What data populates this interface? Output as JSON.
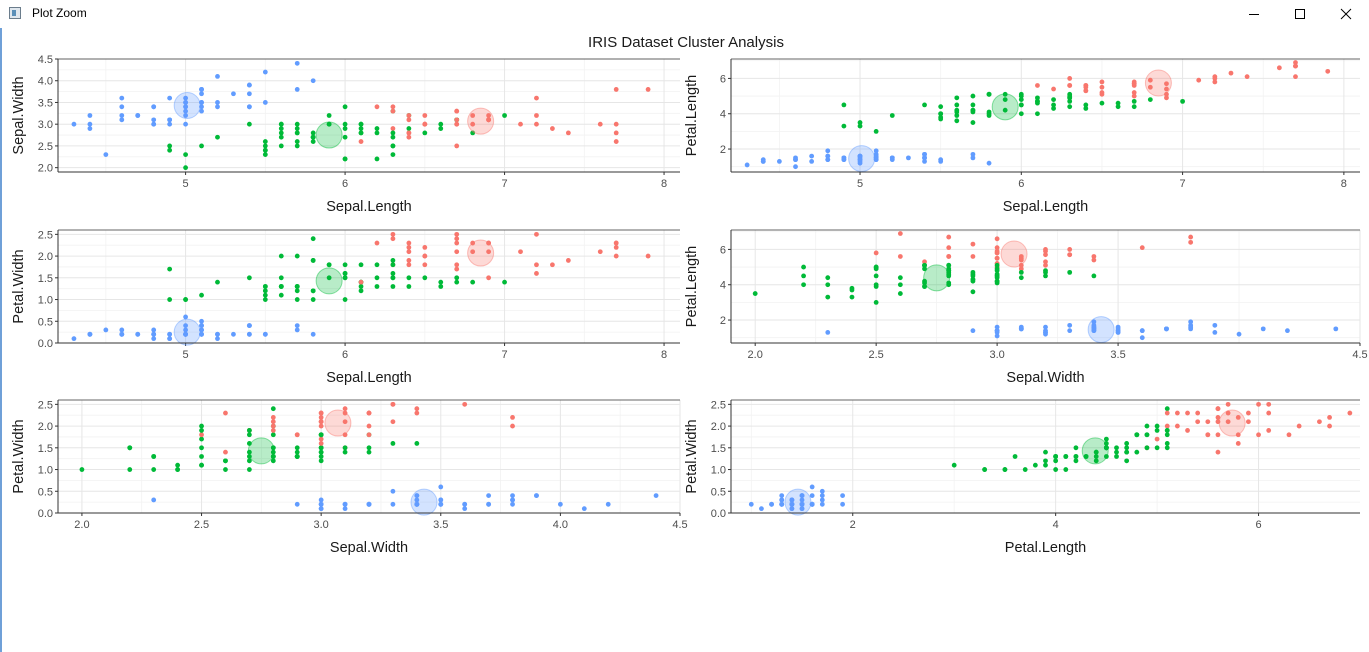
{
  "window": {
    "title": "Plot Zoom"
  },
  "chart_data": {
    "type": "scatter",
    "title": "IRIS Dataset Cluster Analysis",
    "colors": {
      "cluster1": "#f8766d",
      "cluster2": "#00ba38",
      "cluster3": "#619cff"
    },
    "centers": [
      {
        "cluster": 1,
        "Sepal.Length": 6.85,
        "Sepal.Width": 3.07,
        "Petal.Length": 5.74,
        "Petal.Width": 2.07
      },
      {
        "cluster": 2,
        "Sepal.Length": 5.9,
        "Sepal.Width": 2.75,
        "Petal.Length": 4.39,
        "Petal.Width": 1.43
      },
      {
        "cluster": 3,
        "Sepal.Length": 5.01,
        "Sepal.Width": 3.43,
        "Petal.Length": 1.46,
        "Petal.Width": 0.25
      }
    ],
    "panels": [
      {
        "x": "Sepal.Length",
        "y": "Sepal.Width",
        "xlabel": "Sepal.Length",
        "ylabel": "Sepal.Width",
        "xlim": [
          4.2,
          8.1
        ],
        "ylim": [
          1.9,
          4.5
        ],
        "xticks": [
          "5",
          "6",
          "7",
          "8"
        ],
        "yticks": [
          "2.0",
          "2.5",
          "3.0",
          "3.5",
          "4.0",
          "4.5"
        ]
      },
      {
        "x": "Sepal.Length",
        "y": "Petal.Length",
        "xlabel": "Sepal.Length",
        "ylabel": "Petal.Length",
        "xlim": [
          4.2,
          8.1
        ],
        "ylim": [
          0.7,
          7.1
        ],
        "xticks": [
          "5",
          "6",
          "7",
          "8"
        ],
        "yticks": [
          "2",
          "4",
          "6"
        ]
      },
      {
        "x": "Sepal.Length",
        "y": "Petal.Width",
        "xlabel": "Sepal.Length",
        "ylabel": "Petal.Width",
        "xlim": [
          4.2,
          8.1
        ],
        "ylim": [
          0.0,
          2.6
        ],
        "xticks": [
          "5",
          "6",
          "7",
          "8"
        ],
        "yticks": [
          "0.0",
          "0.5",
          "1.0",
          "1.5",
          "2.0",
          "2.5"
        ]
      },
      {
        "x": "Sepal.Width",
        "y": "Petal.Length",
        "xlabel": "Sepal.Width",
        "ylabel": "Petal.Length",
        "xlim": [
          1.9,
          4.5
        ],
        "ylim": [
          0.7,
          7.1
        ],
        "xticks": [
          "2.0",
          "2.5",
          "3.0",
          "3.5",
          "4.5"
        ],
        "yticks": [
          "2",
          "4",
          "6"
        ]
      },
      {
        "x": "Sepal.Width",
        "y": "Petal.Width",
        "xlabel": "Sepal.Width",
        "ylabel": "Petal.Width",
        "xlim": [
          1.9,
          4.5
        ],
        "ylim": [
          0.0,
          2.6
        ],
        "xticks": [
          "2.0",
          "2.5",
          "3.0",
          "3.5",
          "4.0",
          "4.5"
        ],
        "yticks": [
          "0.0",
          "0.5",
          "1.0",
          "1.5",
          "2.0",
          "2.5"
        ]
      },
      {
        "x": "Petal.Length",
        "y": "Petal.Width",
        "xlabel": "Petal.Length",
        "ylabel": "Petal.Width",
        "xlim": [
          0.8,
          7.0
        ],
        "ylim": [
          0.0,
          2.6
        ],
        "xticks": [
          "2",
          "4",
          "6"
        ],
        "yticks": [
          "0.0",
          "0.5",
          "1.0",
          "1.5",
          "2.0",
          "2.5"
        ]
      }
    ],
    "columns": [
      "Sepal.Length",
      "Sepal.Width",
      "Petal.Length",
      "Petal.Width",
      "cluster"
    ],
    "points": [
      [
        5.1,
        3.5,
        1.4,
        0.2,
        3
      ],
      [
        4.9,
        3.0,
        1.4,
        0.2,
        3
      ],
      [
        4.7,
        3.2,
        1.3,
        0.2,
        3
      ],
      [
        4.6,
        3.1,
        1.5,
        0.2,
        3
      ],
      [
        5.0,
        3.6,
        1.4,
        0.2,
        3
      ],
      [
        5.4,
        3.9,
        1.7,
        0.4,
        3
      ],
      [
        4.6,
        3.4,
        1.4,
        0.3,
        3
      ],
      [
        5.0,
        3.4,
        1.5,
        0.2,
        3
      ],
      [
        4.4,
        2.9,
        1.4,
        0.2,
        3
      ],
      [
        4.9,
        3.1,
        1.5,
        0.1,
        3
      ],
      [
        5.4,
        3.7,
        1.5,
        0.2,
        3
      ],
      [
        4.8,
        3.4,
        1.6,
        0.2,
        3
      ],
      [
        4.8,
        3.0,
        1.4,
        0.1,
        3
      ],
      [
        4.3,
        3.0,
        1.1,
        0.1,
        3
      ],
      [
        5.8,
        4.0,
        1.2,
        0.2,
        3
      ],
      [
        5.7,
        4.4,
        1.5,
        0.4,
        3
      ],
      [
        5.4,
        3.9,
        1.3,
        0.4,
        3
      ],
      [
        5.1,
        3.5,
        1.4,
        0.3,
        3
      ],
      [
        5.7,
        3.8,
        1.7,
        0.3,
        3
      ],
      [
        5.1,
        3.8,
        1.5,
        0.3,
        3
      ],
      [
        5.4,
        3.4,
        1.7,
        0.2,
        3
      ],
      [
        5.1,
        3.7,
        1.5,
        0.4,
        3
      ],
      [
        4.6,
        3.6,
        1.0,
        0.2,
        3
      ],
      [
        5.1,
        3.3,
        1.7,
        0.5,
        3
      ],
      [
        4.8,
        3.4,
        1.9,
        0.2,
        3
      ],
      [
        5.0,
        3.0,
        1.6,
        0.2,
        3
      ],
      [
        5.0,
        3.4,
        1.6,
        0.4,
        3
      ],
      [
        5.2,
        3.5,
        1.5,
        0.2,
        3
      ],
      [
        5.2,
        3.4,
        1.4,
        0.2,
        3
      ],
      [
        4.7,
        3.2,
        1.6,
        0.2,
        3
      ],
      [
        4.8,
        3.1,
        1.6,
        0.2,
        3
      ],
      [
        5.4,
        3.4,
        1.5,
        0.4,
        3
      ],
      [
        5.2,
        4.1,
        1.5,
        0.1,
        3
      ],
      [
        5.5,
        4.2,
        1.4,
        0.2,
        3
      ],
      [
        4.9,
        3.1,
        1.5,
        0.2,
        3
      ],
      [
        5.0,
        3.2,
        1.2,
        0.2,
        3
      ],
      [
        5.5,
        3.5,
        1.3,
        0.2,
        3
      ],
      [
        4.9,
        3.6,
        1.4,
        0.1,
        3
      ],
      [
        4.4,
        3.0,
        1.3,
        0.2,
        3
      ],
      [
        5.1,
        3.4,
        1.5,
        0.2,
        3
      ],
      [
        5.0,
        3.5,
        1.3,
        0.3,
        3
      ],
      [
        4.5,
        2.3,
        1.3,
        0.3,
        3
      ],
      [
        4.4,
        3.2,
        1.3,
        0.2,
        3
      ],
      [
        5.0,
        3.5,
        1.6,
        0.6,
        3
      ],
      [
        5.1,
        3.8,
        1.9,
        0.4,
        3
      ],
      [
        4.8,
        3.0,
        1.4,
        0.3,
        3
      ],
      [
        5.1,
        3.8,
        1.6,
        0.2,
        3
      ],
      [
        4.6,
        3.2,
        1.4,
        0.2,
        3
      ],
      [
        5.3,
        3.7,
        1.5,
        0.2,
        3
      ],
      [
        5.0,
        3.3,
        1.4,
        0.2,
        3
      ],
      [
        7.0,
        3.2,
        4.7,
        1.4,
        2
      ],
      [
        6.4,
        3.2,
        4.5,
        1.5,
        2
      ],
      [
        6.9,
        3.1,
        4.9,
        1.5,
        1
      ],
      [
        5.5,
        2.3,
        4.0,
        1.3,
        2
      ],
      [
        6.5,
        2.8,
        4.6,
        1.5,
        2
      ],
      [
        5.7,
        2.8,
        4.5,
        1.3,
        2
      ],
      [
        6.3,
        3.3,
        4.7,
        1.6,
        2
      ],
      [
        4.9,
        2.4,
        3.3,
        1.0,
        2
      ],
      [
        6.6,
        2.9,
        4.6,
        1.3,
        2
      ],
      [
        5.2,
        2.7,
        3.9,
        1.4,
        2
      ],
      [
        5.0,
        2.0,
        3.5,
        1.0,
        2
      ],
      [
        5.9,
        3.0,
        4.2,
        1.5,
        2
      ],
      [
        6.0,
        2.2,
        4.0,
        1.0,
        2
      ],
      [
        6.1,
        2.9,
        4.7,
        1.4,
        2
      ],
      [
        5.6,
        2.9,
        3.6,
        1.3,
        2
      ],
      [
        6.7,
        3.1,
        4.4,
        1.4,
        2
      ],
      [
        5.6,
        3.0,
        4.5,
        1.5,
        2
      ],
      [
        5.8,
        2.7,
        4.1,
        1.0,
        2
      ],
      [
        6.2,
        2.2,
        4.5,
        1.5,
        2
      ],
      [
        5.6,
        2.5,
        3.9,
        1.1,
        2
      ],
      [
        5.9,
        3.2,
        4.8,
        1.8,
        2
      ],
      [
        6.1,
        2.8,
        4.0,
        1.3,
        2
      ],
      [
        6.3,
        2.5,
        4.9,
        1.5,
        2
      ],
      [
        6.1,
        2.8,
        4.7,
        1.2,
        2
      ],
      [
        6.4,
        2.9,
        4.3,
        1.3,
        2
      ],
      [
        6.6,
        3.0,
        4.4,
        1.4,
        2
      ],
      [
        6.8,
        2.8,
        4.8,
        1.4,
        2
      ],
      [
        6.7,
        3.0,
        5.0,
        1.7,
        1
      ],
      [
        6.0,
        2.9,
        4.5,
        1.5,
        2
      ],
      [
        5.7,
        2.6,
        3.5,
        1.0,
        2
      ],
      [
        5.5,
        2.4,
        3.8,
        1.1,
        2
      ],
      [
        5.5,
        2.4,
        3.7,
        1.0,
        2
      ],
      [
        5.8,
        2.7,
        3.9,
        1.2,
        2
      ],
      [
        6.0,
        2.7,
        5.1,
        1.6,
        2
      ],
      [
        5.4,
        3.0,
        4.5,
        1.5,
        2
      ],
      [
        6.0,
        3.4,
        4.5,
        1.6,
        2
      ],
      [
        6.7,
        3.1,
        4.7,
        1.5,
        2
      ],
      [
        6.3,
        2.3,
        4.4,
        1.3,
        2
      ],
      [
        5.6,
        3.0,
        4.1,
        1.3,
        2
      ],
      [
        5.5,
        2.5,
        4.0,
        1.3,
        2
      ],
      [
        5.5,
        2.6,
        4.4,
        1.2,
        2
      ],
      [
        6.1,
        3.0,
        4.6,
        1.4,
        2
      ],
      [
        5.8,
        2.6,
        4.0,
        1.2,
        2
      ],
      [
        5.0,
        2.3,
        3.3,
        1.0,
        2
      ],
      [
        5.6,
        2.7,
        4.2,
        1.3,
        2
      ],
      [
        5.7,
        3.0,
        4.2,
        1.2,
        2
      ],
      [
        5.7,
        2.9,
        4.2,
        1.3,
        2
      ],
      [
        6.2,
        2.9,
        4.3,
        1.3,
        2
      ],
      [
        5.1,
        2.5,
        3.0,
        1.1,
        2
      ],
      [
        5.7,
        2.8,
        4.1,
        1.3,
        2
      ],
      [
        6.3,
        3.3,
        6.0,
        2.5,
        1
      ],
      [
        5.8,
        2.7,
        5.1,
        1.9,
        2
      ],
      [
        7.1,
        3.0,
        5.9,
        2.1,
        1
      ],
      [
        6.3,
        2.9,
        5.6,
        1.8,
        1
      ],
      [
        6.5,
        3.0,
        5.8,
        2.2,
        1
      ],
      [
        7.6,
        3.0,
        6.6,
        2.1,
        1
      ],
      [
        4.9,
        2.5,
        4.5,
        1.7,
        2
      ],
      [
        7.3,
        2.9,
        6.3,
        1.8,
        1
      ],
      [
        6.7,
        2.5,
        5.8,
        1.8,
        1
      ],
      [
        7.2,
        3.6,
        6.1,
        2.5,
        1
      ],
      [
        6.5,
        3.2,
        5.1,
        2.0,
        1
      ],
      [
        6.4,
        2.7,
        5.3,
        1.9,
        1
      ],
      [
        6.8,
        3.0,
        5.5,
        2.1,
        1
      ],
      [
        5.7,
        2.5,
        5.0,
        2.0,
        2
      ],
      [
        5.8,
        2.8,
        5.1,
        2.4,
        2
      ],
      [
        6.4,
        3.2,
        5.3,
        2.3,
        1
      ],
      [
        6.5,
        3.0,
        5.5,
        1.8,
        1
      ],
      [
        7.7,
        3.8,
        6.7,
        2.2,
        1
      ],
      [
        7.7,
        2.6,
        6.9,
        2.3,
        1
      ],
      [
        6.0,
        2.2,
        5.0,
        1.5,
        2
      ],
      [
        6.9,
        3.2,
        5.7,
        2.3,
        1
      ],
      [
        5.6,
        2.8,
        4.9,
        2.0,
        2
      ],
      [
        7.7,
        2.8,
        6.7,
        2.0,
        1
      ],
      [
        6.3,
        2.7,
        4.9,
        1.8,
        2
      ],
      [
        6.7,
        3.3,
        5.7,
        2.1,
        1
      ],
      [
        7.2,
        3.2,
        6.0,
        1.8,
        1
      ],
      [
        6.2,
        2.8,
        4.8,
        1.8,
        2
      ],
      [
        6.1,
        3.0,
        4.9,
        1.8,
        2
      ],
      [
        6.4,
        2.8,
        5.6,
        2.1,
        1
      ],
      [
        7.2,
        3.0,
        5.8,
        1.6,
        1
      ],
      [
        7.4,
        2.8,
        6.1,
        1.9,
        1
      ],
      [
        7.9,
        3.8,
        6.4,
        2.0,
        1
      ],
      [
        6.4,
        2.8,
        5.6,
        2.2,
        1
      ],
      [
        6.3,
        2.8,
        5.1,
        1.5,
        2
      ],
      [
        6.1,
        2.6,
        5.6,
        1.4,
        1
      ],
      [
        7.7,
        3.0,
        6.1,
        2.3,
        1
      ],
      [
        6.3,
        3.4,
        5.6,
        2.4,
        1
      ],
      [
        6.4,
        3.1,
        5.5,
        1.8,
        1
      ],
      [
        6.0,
        3.0,
        4.8,
        1.8,
        2
      ],
      [
        6.9,
        3.1,
        5.4,
        2.1,
        1
      ],
      [
        6.7,
        3.1,
        5.6,
        2.4,
        1
      ],
      [
        6.9,
        3.1,
        5.1,
        2.3,
        1
      ],
      [
        5.8,
        2.7,
        5.1,
        1.9,
        2
      ],
      [
        6.8,
        3.2,
        5.9,
        2.3,
        1
      ],
      [
        6.7,
        3.3,
        5.7,
        2.5,
        1
      ],
      [
        6.7,
        3.0,
        5.2,
        2.3,
        1
      ],
      [
        6.3,
        2.5,
        5.0,
        1.9,
        2
      ],
      [
        6.5,
        3.0,
        5.2,
        2.0,
        1
      ],
      [
        6.2,
        3.4,
        5.4,
        2.3,
        1
      ],
      [
        5.9,
        3.0,
        5.1,
        1.8,
        2
      ]
    ]
  }
}
